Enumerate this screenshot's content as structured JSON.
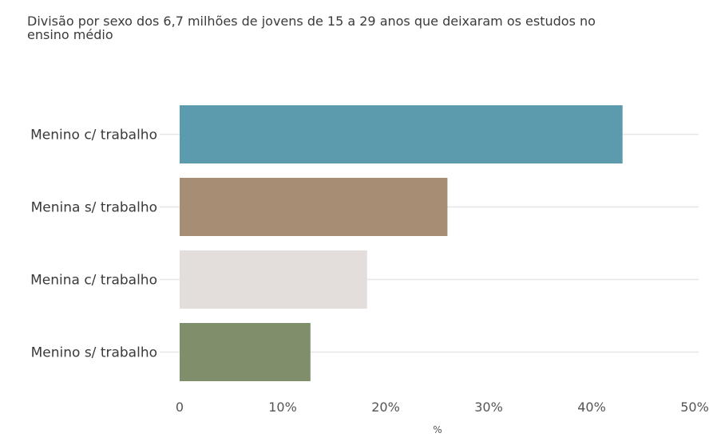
{
  "chart_data": {
    "type": "bar",
    "orientation": "horizontal",
    "subtitle": "Divisão por sexo dos 6,7 milhões de jovens de 15 a 29 anos que deixaram os estudos no ensino médio",
    "categories": [
      "Menino c/ trabalho",
      "Menina s/ trabalho",
      "Menina c/ trabalho",
      "Menino s/ trabalho"
    ],
    "values": [
      43,
      26,
      18.2,
      12.7
    ],
    "colors": [
      "#5c9aae",
      "#a68d73",
      "#e3dedc",
      "#7f8f6b"
    ],
    "xlabel": "%",
    "ylabel": "",
    "xlim": [
      0,
      50
    ],
    "xticks": [
      0,
      10,
      20,
      30,
      40,
      50
    ],
    "xtick_labels": [
      "0",
      "10%",
      "20%",
      "30%",
      "40%",
      "50%"
    ],
    "grid": "horizontal lines per category",
    "legend": "none"
  }
}
